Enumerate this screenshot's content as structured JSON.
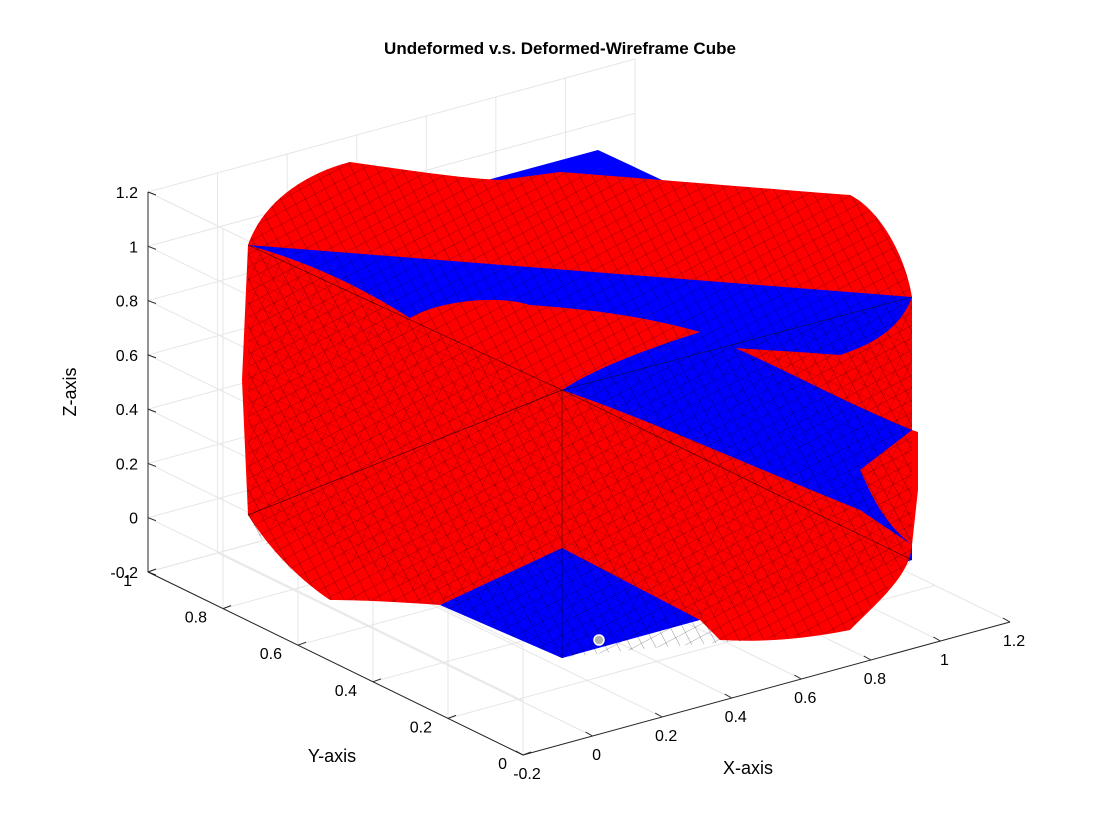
{
  "chart_data": {
    "type": "surface3d",
    "title": "Undeformed v.s. Deformed-Wireframe Cube",
    "xlabel": "X-axis",
    "ylabel": "Y-axis",
    "zlabel": "Z-axis",
    "x_ticks": [
      "-0.2",
      "0",
      "0.2",
      "0.4",
      "0.6",
      "0.8",
      "1",
      "1.2"
    ],
    "y_ticks": [
      "0",
      "0.2",
      "0.4",
      "0.6",
      "0.8",
      "1"
    ],
    "z_ticks": [
      "-0.2",
      "0",
      "0.2",
      "0.4",
      "0.6",
      "0.8",
      "1",
      "1.2"
    ],
    "xlim": [
      -0.2,
      1.2
    ],
    "ylim": [
      0,
      1
    ],
    "zlim": [
      -0.2,
      1.2
    ],
    "grid": true,
    "series": [
      {
        "color": "#0000ff"
      },
      {
        "color": "#ff0000"
      }
    ]
  }
}
